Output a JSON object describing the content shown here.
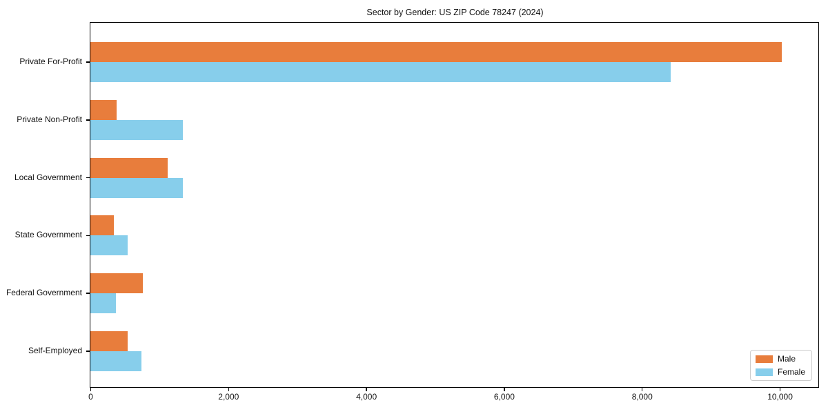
{
  "chart_data": {
    "type": "bar",
    "orientation": "horizontal",
    "title": "Sector by Gender: US ZIP Code 78247 (2024)",
    "categories": [
      "Private For-Profit",
      "Private Non-Profit",
      "Local Government",
      "State Government",
      "Federal Government",
      "Self-Employed"
    ],
    "series": [
      {
        "name": "Male",
        "color": "#e87d3c",
        "values": [
          10030,
          380,
          1125,
          340,
          760,
          540
        ]
      },
      {
        "name": "Female",
        "color": "#87ceeb",
        "values": [
          8420,
          1340,
          1340,
          540,
          375,
          740
        ]
      }
    ],
    "xlabel": "",
    "ylabel": "",
    "xlim": [
      0,
      10550
    ],
    "xticks": [
      {
        "value": 0,
        "label": "0"
      },
      {
        "value": 2000,
        "label": "2,000"
      },
      {
        "value": 4000,
        "label": "4,000"
      },
      {
        "value": 6000,
        "label": "6,000"
      },
      {
        "value": 8000,
        "label": "8,000"
      },
      {
        "value": 10000,
        "label": "10,000"
      }
    ],
    "grid": false,
    "legend_position": "lower right"
  }
}
